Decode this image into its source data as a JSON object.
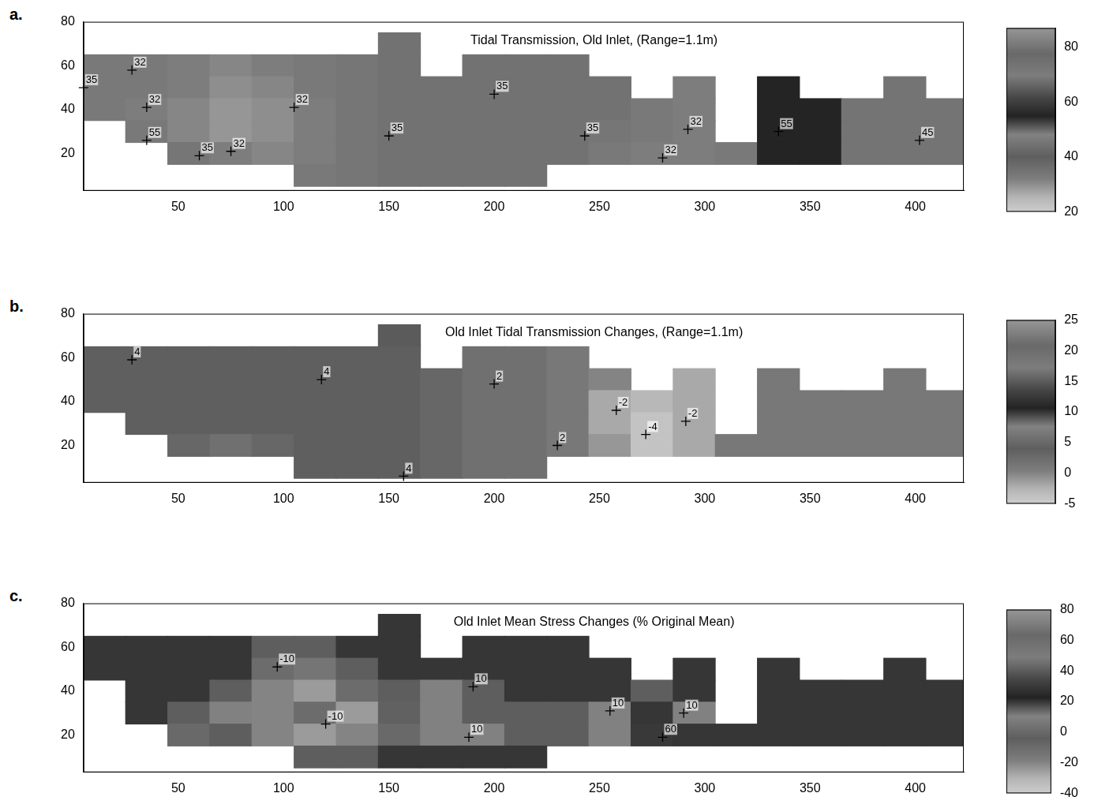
{
  "chart_data": [
    {
      "type": "heatmap",
      "panel": "a.",
      "title": "Tidal Transmission, Old Inlet, (Range=1.1m)",
      "xlim": [
        5,
        423
      ],
      "xticks": [
        50,
        100,
        150,
        200,
        250,
        300,
        350,
        400
      ],
      "ylim": [
        3,
        80
      ],
      "yticks": [
        20,
        40,
        60,
        80
      ],
      "grid": false,
      "marker": "cross",
      "cells": {
        "x": [
          15,
          35,
          55,
          75,
          95,
          115,
          135,
          155,
          175,
          195,
          215,
          235,
          255,
          275,
          295,
          315,
          335,
          355,
          375,
          395,
          415
        ],
        "y": [
          70,
          60,
          50,
          40,
          30,
          20,
          10
        ],
        "values": [
          [
            null,
            null,
            null,
            null,
            null,
            null,
            null,
            35,
            null,
            null,
            null,
            null,
            null,
            null,
            null,
            null,
            null,
            null,
            null,
            null,
            null
          ],
          [
            33,
            33,
            32,
            31,
            32,
            33,
            34,
            35,
            null,
            35,
            35,
            35,
            null,
            null,
            null,
            null,
            null,
            null,
            null,
            null,
            null
          ],
          [
            33,
            33,
            32,
            30,
            31,
            33,
            34,
            35,
            35,
            35,
            35,
            35,
            35,
            null,
            32,
            null,
            55,
            null,
            null,
            45,
            null
          ],
          [
            33,
            32,
            31,
            29,
            30,
            32,
            34,
            35,
            35,
            35,
            35,
            35,
            35,
            33,
            32,
            null,
            55,
            55,
            45,
            45,
            45
          ],
          [
            null,
            33,
            31,
            29,
            30,
            32,
            34,
            35,
            35,
            35,
            35,
            35,
            34,
            33,
            32,
            null,
            55,
            55,
            45,
            45,
            45
          ],
          [
            null,
            null,
            34,
            32,
            31,
            32,
            34,
            35,
            35,
            35,
            35,
            35,
            33,
            32,
            32,
            33,
            55,
            55,
            45,
            45,
            45
          ],
          [
            null,
            null,
            null,
            null,
            null,
            33,
            34,
            35,
            35,
            35,
            35,
            null,
            null,
            null,
            null,
            null,
            null,
            null,
            null,
            null,
            null
          ]
        ]
      },
      "colorbar": {
        "range": [
          20,
          87
        ],
        "ticks": [
          20,
          40,
          60,
          80
        ]
      },
      "annotations": [
        {
          "text": "35",
          "x": 5,
          "y": 50
        },
        {
          "text": "32",
          "x": 28,
          "y": 58
        },
        {
          "text": "32",
          "x": 35,
          "y": 41
        },
        {
          "text": "55",
          "x": 35,
          "y": 26
        },
        {
          "text": "35",
          "x": 60,
          "y": 19
        },
        {
          "text": "32",
          "x": 75,
          "y": 21
        },
        {
          "text": "32",
          "x": 105,
          "y": 41
        },
        {
          "text": "35",
          "x": 150,
          "y": 28
        },
        {
          "text": "35",
          "x": 200,
          "y": 47
        },
        {
          "text": "35",
          "x": 243,
          "y": 28
        },
        {
          "text": "32",
          "x": 292,
          "y": 31
        },
        {
          "text": "32",
          "x": 280,
          "y": 18
        },
        {
          "text": "55",
          "x": 335,
          "y": 30
        },
        {
          "text": "45",
          "x": 402,
          "y": 26
        }
      ]
    },
    {
      "type": "heatmap",
      "panel": "b.",
      "title": "Old Inlet Tidal Transmission Changes, (Range=1.1m)",
      "xlim": [
        5,
        423
      ],
      "xticks": [
        50,
        100,
        150,
        200,
        250,
        300,
        350,
        400
      ],
      "ylim": [
        3,
        80
      ],
      "yticks": [
        20,
        40,
        60,
        80
      ],
      "grid": false,
      "marker": "cross",
      "cells": {
        "x": [
          15,
          35,
          55,
          75,
          95,
          115,
          135,
          155,
          175,
          195,
          215,
          235,
          255,
          275,
          295,
          315,
          335,
          355,
          375,
          395,
          415
        ],
        "y": [
          70,
          60,
          50,
          40,
          30,
          20,
          10
        ],
        "values": [
          [
            null,
            null,
            null,
            null,
            null,
            null,
            null,
            15,
            null,
            null,
            null,
            null,
            null,
            null,
            null,
            null,
            null,
            null,
            null,
            null,
            null
          ],
          [
            4,
            4,
            4,
            4,
            4,
            4,
            4,
            4,
            null,
            2,
            2,
            1,
            null,
            null,
            null,
            null,
            null,
            null,
            null,
            null,
            null
          ],
          [
            4,
            4,
            4,
            4,
            4,
            4,
            4,
            4,
            3,
            2,
            2,
            1,
            0,
            null,
            -2,
            null,
            1,
            null,
            null,
            1,
            null
          ],
          [
            4,
            4,
            4,
            4,
            4,
            4,
            4,
            4,
            3,
            2,
            2,
            1,
            -2,
            -3,
            -2,
            null,
            1,
            1,
            1,
            1,
            1
          ],
          [
            null,
            4,
            4,
            4,
            4,
            4,
            4,
            4,
            3,
            2,
            2,
            1,
            -2,
            -4,
            -2,
            null,
            1,
            1,
            1,
            1,
            1
          ],
          [
            null,
            null,
            3,
            2,
            3,
            4,
            4,
            4,
            3,
            2,
            2,
            1,
            -1,
            -4,
            -2,
            1,
            1,
            1,
            1,
            1,
            1
          ],
          [
            null,
            null,
            null,
            null,
            null,
            4,
            4,
            4,
            3,
            2,
            2,
            null,
            null,
            null,
            null,
            null,
            null,
            null,
            null,
            null,
            null
          ]
        ]
      },
      "colorbar": {
        "range": [
          -5,
          25
        ],
        "ticks": [
          -5,
          0,
          5,
          10,
          15,
          20,
          25
        ]
      },
      "annotations": [
        {
          "text": "4",
          "x": 28,
          "y": 59
        },
        {
          "text": "4",
          "x": 118,
          "y": 50
        },
        {
          "text": "2",
          "x": 200,
          "y": 48
        },
        {
          "text": "2",
          "x": 230,
          "y": 20
        },
        {
          "text": "-2",
          "x": 258,
          "y": 36
        },
        {
          "text": "-4",
          "x": 272,
          "y": 25
        },
        {
          "text": "-2",
          "x": 291,
          "y": 31
        },
        {
          "text": "4",
          "x": 157,
          "y": 6
        }
      ]
    },
    {
      "type": "heatmap",
      "panel": "c.",
      "title": "Old Inlet Mean Stress Changes (% Original Mean)",
      "xlim": [
        5,
        423
      ],
      "xticks": [
        50,
        100,
        150,
        200,
        250,
        300,
        350,
        400
      ],
      "ylim": [
        3,
        80
      ],
      "yticks": [
        20,
        40,
        60,
        80
      ],
      "grid": false,
      "marker": "cross",
      "cells": {
        "x": [
          15,
          35,
          55,
          75,
          95,
          115,
          135,
          155,
          175,
          195,
          215,
          235,
          255,
          275,
          295,
          315,
          335,
          355,
          375,
          395,
          415
        ],
        "y": [
          70,
          60,
          50,
          40,
          30,
          20,
          10
        ],
        "values": [
          [
            null,
            null,
            null,
            null,
            null,
            null,
            null,
            20,
            null,
            null,
            null,
            null,
            null,
            null,
            null,
            null,
            null,
            null,
            null,
            null,
            null
          ],
          [
            20,
            20,
            20,
            20,
            15,
            15,
            20,
            20,
            null,
            20,
            20,
            20,
            null,
            null,
            null,
            null,
            null,
            null,
            null,
            null,
            null
          ],
          [
            20,
            20,
            20,
            20,
            -10,
            5,
            15,
            20,
            20,
            20,
            20,
            20,
            20,
            null,
            20,
            null,
            20,
            null,
            null,
            20,
            null
          ],
          [
            null,
            20,
            20,
            15,
            -20,
            -25,
            -10,
            15,
            10,
            15,
            20,
            20,
            20,
            15,
            20,
            null,
            20,
            20,
            20,
            20,
            20
          ],
          [
            null,
            20,
            15,
            10,
            -20,
            -10,
            -25,
            -5,
            10,
            15,
            15,
            15,
            10,
            20,
            10,
            null,
            20,
            20,
            20,
            20,
            20
          ],
          [
            null,
            null,
            0,
            15,
            -20,
            -25,
            -20,
            0,
            10,
            10,
            15,
            15,
            10,
            30,
            20,
            20,
            20,
            20,
            20,
            20,
            20
          ],
          [
            null,
            null,
            null,
            null,
            null,
            15,
            15,
            20,
            20,
            20,
            20,
            null,
            null,
            null,
            null,
            null,
            null,
            null,
            null,
            null,
            null
          ]
        ]
      },
      "colorbar": {
        "range": [
          -40,
          80
        ],
        "ticks": [
          -40,
          -20,
          0,
          20,
          40,
          60,
          80
        ]
      },
      "annotations": [
        {
          "text": "-10",
          "x": 97,
          "y": 51
        },
        {
          "text": "-10",
          "x": 120,
          "y": 25
        },
        {
          "text": "10",
          "x": 190,
          "y": 42
        },
        {
          "text": "10",
          "x": 188,
          "y": 19
        },
        {
          "text": "10",
          "x": 255,
          "y": 31
        },
        {
          "text": "10",
          "x": 290,
          "y": 30
        },
        {
          "text": "60",
          "x": 280,
          "y": 19
        }
      ]
    }
  ]
}
